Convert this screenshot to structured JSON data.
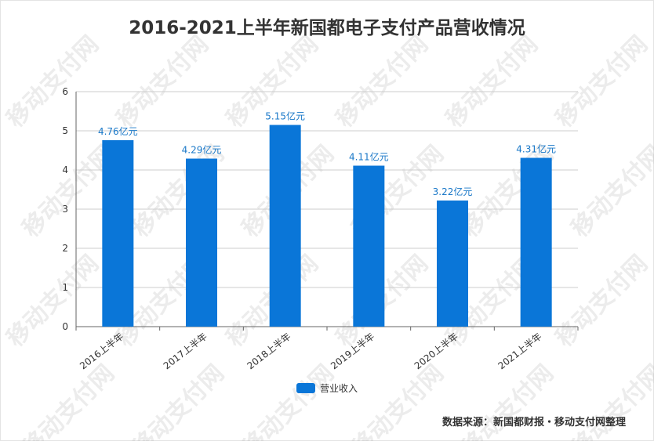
{
  "title": "2016-2021上半年新国都电子支付产品营收情况",
  "watermark": "移动支付网",
  "source": "数据来源：新国都财报・移动支付网整理",
  "colors": {
    "bar": "#0A76D8",
    "label": "#1a78c8",
    "grid": "#cccccc",
    "axis": "#666666"
  },
  "chart_data": {
    "type": "bar",
    "categories": [
      "2016上半年",
      "2017上半年",
      "2018上半年",
      "2019上半年",
      "2020上半年",
      "2021上半年"
    ],
    "series": [
      {
        "name": "营业收入",
        "values": [
          4.76,
          4.29,
          5.15,
          4.11,
          3.22,
          4.31
        ]
      }
    ],
    "data_labels": [
      "4.76亿元",
      "4.29亿元",
      "5.15亿元",
      "4.11亿元",
      "3.22亿元",
      "4.31亿元"
    ],
    "yticks": [
      "0",
      "1",
      "2",
      "3",
      "4",
      "5",
      "6"
    ],
    "ylim": [
      0,
      6
    ],
    "grid": true,
    "legend": "bottom-center"
  }
}
